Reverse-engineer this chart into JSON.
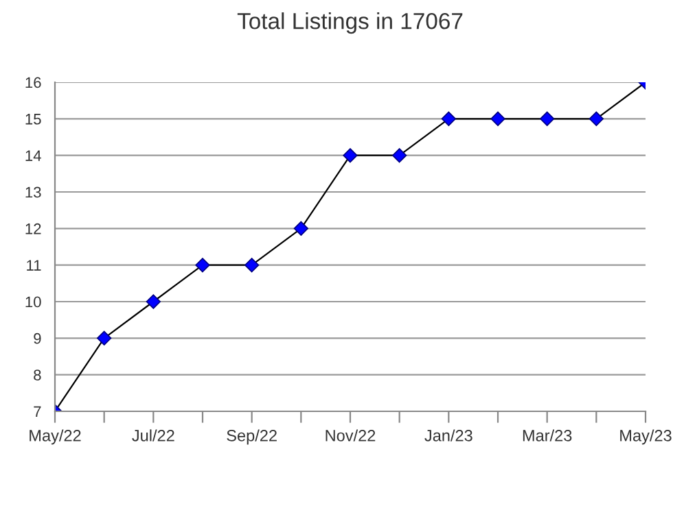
{
  "chart_data": {
    "type": "line",
    "title": "Total Listings in 17067",
    "categories": [
      "May/22",
      null,
      "Jul/22",
      null,
      "Sep/22",
      null,
      "Nov/22",
      null,
      "Jan/23",
      null,
      "Mar/23",
      null,
      "May/23"
    ],
    "series": [
      {
        "color": "#0000ff",
        "values": [
          7,
          9,
          10,
          11,
          11,
          12,
          14,
          14,
          15,
          15,
          15,
          15,
          16
        ]
      }
    ],
    "ylim": [
      7,
      16
    ],
    "yticks": [
      7,
      8,
      9,
      10,
      11,
      12,
      13,
      14,
      15,
      16
    ],
    "grid": "y",
    "legend": false,
    "marker": "diamond",
    "line_style": "solid"
  }
}
